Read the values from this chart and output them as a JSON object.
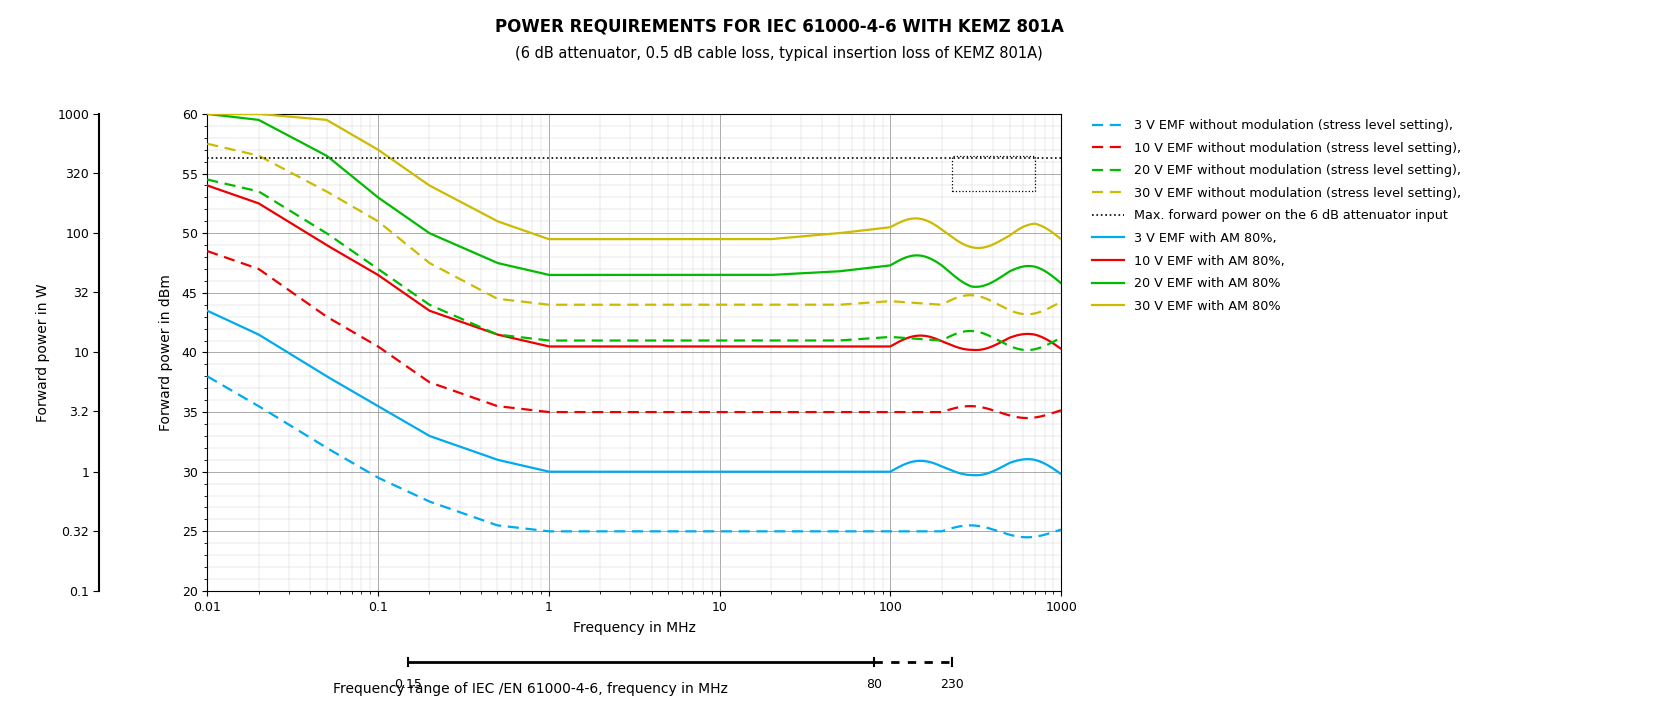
{
  "title": "POWER REQUIREMENTS FOR IEC 61000-4-6 WITH KEMZ 801A",
  "subtitle": "(6 dB attenuator, 0.5 dB cable loss, typical insertion loss of KEMZ 801A)",
  "xlabel": "Frequency in MHz",
  "ylabel_right": "Forward power in dBm",
  "ylabel_left": "Forward power in W",
  "ylim": [
    20,
    60
  ],
  "max_power_dbm": 56.3,
  "colors": {
    "blue": "#00AAEE",
    "red": "#EE0000",
    "green": "#00BB00",
    "yellow": "#CCBB00"
  },
  "legend_entries": [
    "3 V EMF without modulation (stress level setting),",
    "10 V EMF without modulation (stress level setting),",
    "20 V EMF without modulation (stress level setting),",
    "30 V EMF without modulation (stress level setting),",
    "Max. forward power on the 6 dB attenuator input",
    "3 V EMF with AM 80%,",
    "10 V EMF with AM 80%,",
    "20 V EMF with AM 80%",
    "30 V EMF with AM 80%"
  ],
  "w_ticks": [
    0.1,
    0.32,
    1.0,
    3.2,
    10.0,
    32.0,
    100.0,
    320.0,
    1000.0
  ],
  "w_labels": [
    "0.1",
    "0.32",
    "1",
    "3.2",
    "10",
    "32",
    "100",
    "320",
    "1000"
  ]
}
